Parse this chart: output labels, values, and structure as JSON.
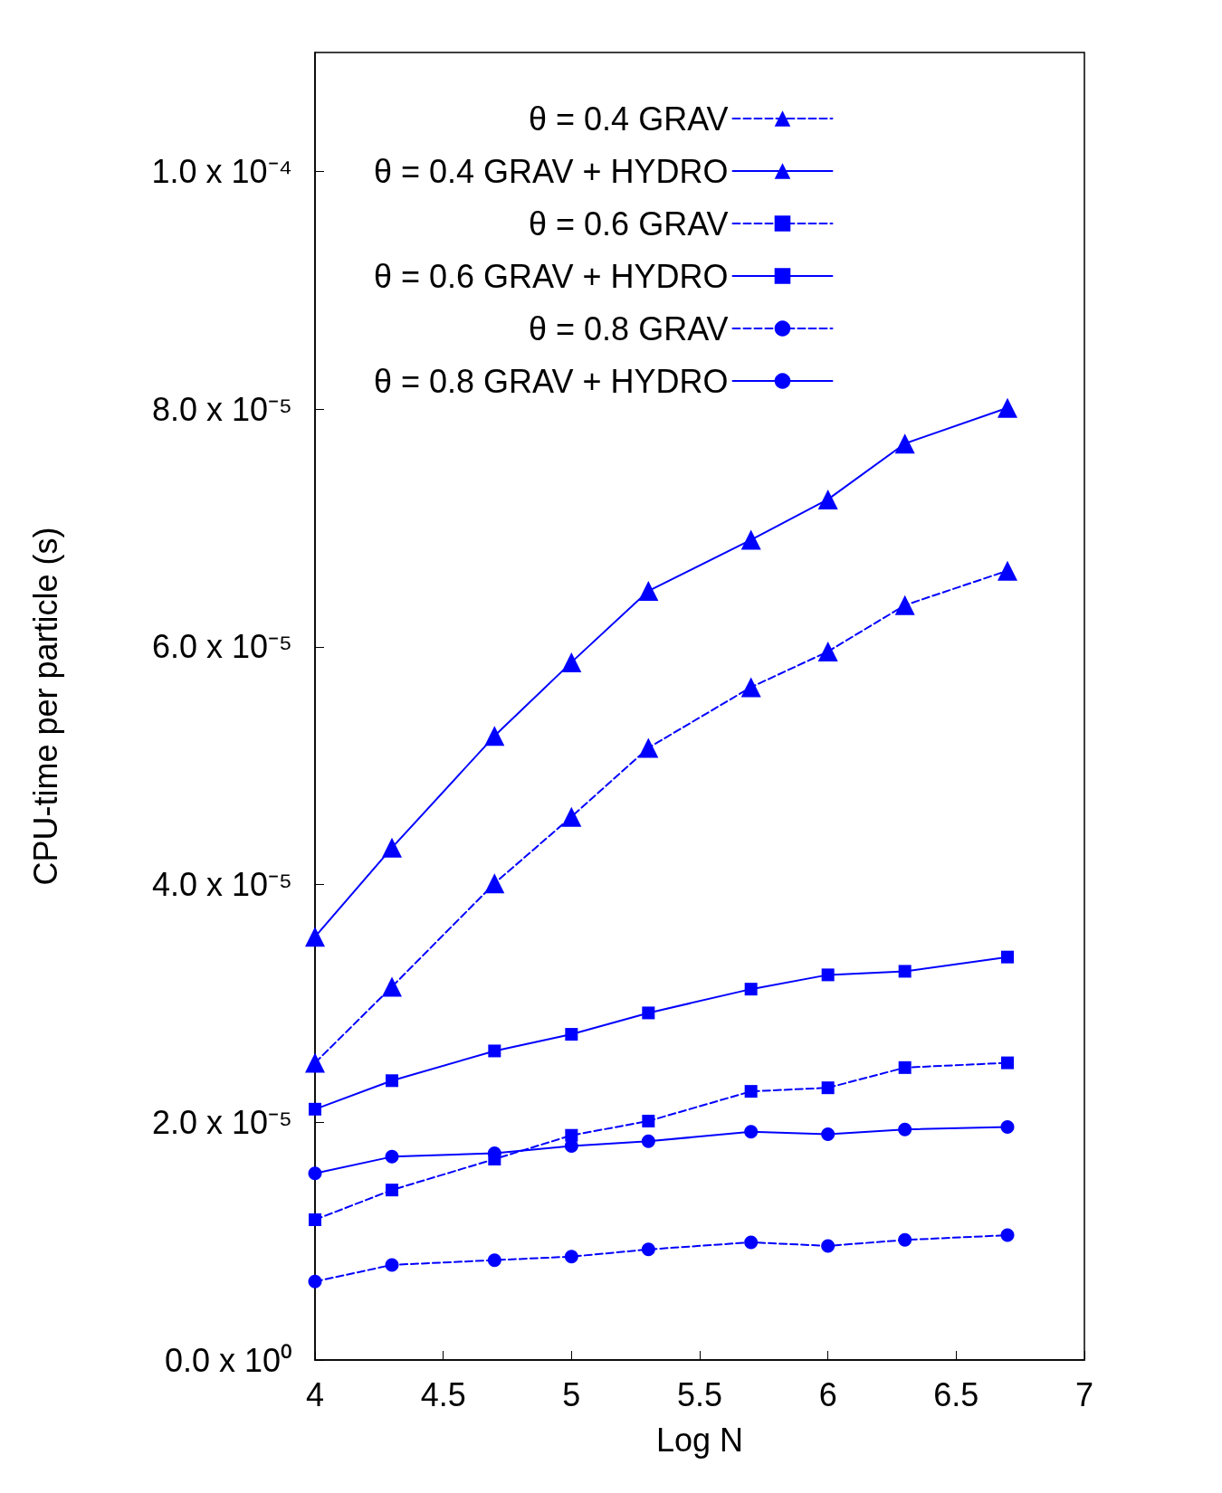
{
  "chart_data": {
    "type": "line",
    "xlabel": "Log N",
    "ylabel": "CPU-time per particle (s)",
    "xlim": [
      4,
      7
    ],
    "xticks": [
      4,
      4.5,
      5,
      5.5,
      6,
      6.5,
      7
    ],
    "ylim": [
      0,
      0.00011
    ],
    "yticks": [
      {
        "value": 0,
        "label": "0.0 x 10⁰"
      },
      {
        "value": 2e-05,
        "label": "2.0 x 10⁻⁵"
      },
      {
        "value": 4e-05,
        "label": "4.0 x 10⁻⁵"
      },
      {
        "value": 6e-05,
        "label": "6.0 x 10⁻⁵"
      },
      {
        "value": 8e-05,
        "label": "8.0 x 10⁻⁵"
      },
      {
        "value": 0.0001,
        "label": "1.0 x 10⁻⁴"
      }
    ],
    "grid": false,
    "legend": "top left",
    "x": [
      4,
      4.3,
      4.7,
      5,
      5.3,
      5.7,
      6,
      6.3,
      6.7
    ],
    "series": [
      {
        "name": "θ = 0.4 GRAV",
        "color": "#0000ff",
        "marker": "triangle",
        "line_style": "dashed",
        "values": [
          2.5e-05,
          3.14e-05,
          4.01e-05,
          4.57e-05,
          5.15e-05,
          5.66e-05,
          5.96e-05,
          6.35e-05,
          6.64e-05
        ]
      },
      {
        "name": "θ = 0.4 GRAV + HYDRO",
        "color": "#0000ff",
        "marker": "triangle",
        "line_style": "solid",
        "values": [
          3.56e-05,
          4.31e-05,
          5.25e-05,
          5.87e-05,
          6.47e-05,
          6.9e-05,
          7.24e-05,
          7.71e-05,
          8.01e-05
        ]
      },
      {
        "name": "θ = 0.6 GRAV",
        "color": "#0000ff",
        "marker": "square",
        "line_style": "dashed",
        "values": [
          1.18e-05,
          1.43e-05,
          1.69e-05,
          1.89e-05,
          2.01e-05,
          2.26e-05,
          2.29e-05,
          2.46e-05,
          2.5e-05
        ]
      },
      {
        "name": "θ = 0.6 GRAV + HYDRO",
        "color": "#0000ff",
        "marker": "square",
        "line_style": "solid",
        "values": [
          2.11e-05,
          2.35e-05,
          2.6e-05,
          2.74e-05,
          2.92e-05,
          3.12e-05,
          3.24e-05,
          3.27e-05,
          3.39e-05
        ]
      },
      {
        "name": "θ = 0.8 GRAV",
        "color": "#0000ff",
        "marker": "circle",
        "line_style": "dashed",
        "values": [
          6.6e-06,
          8e-06,
          8.4e-06,
          8.7e-06,
          9.3e-06,
          9.9e-06,
          9.6e-06,
          1.01e-05,
          1.05e-05
        ]
      },
      {
        "name": "θ = 0.8 GRAV + HYDRO",
        "color": "#0000ff",
        "marker": "circle",
        "line_style": "solid",
        "values": [
          1.57e-05,
          1.71e-05,
          1.74e-05,
          1.8e-05,
          1.84e-05,
          1.92e-05,
          1.9e-05,
          1.94e-05,
          1.96e-05
        ]
      }
    ]
  }
}
